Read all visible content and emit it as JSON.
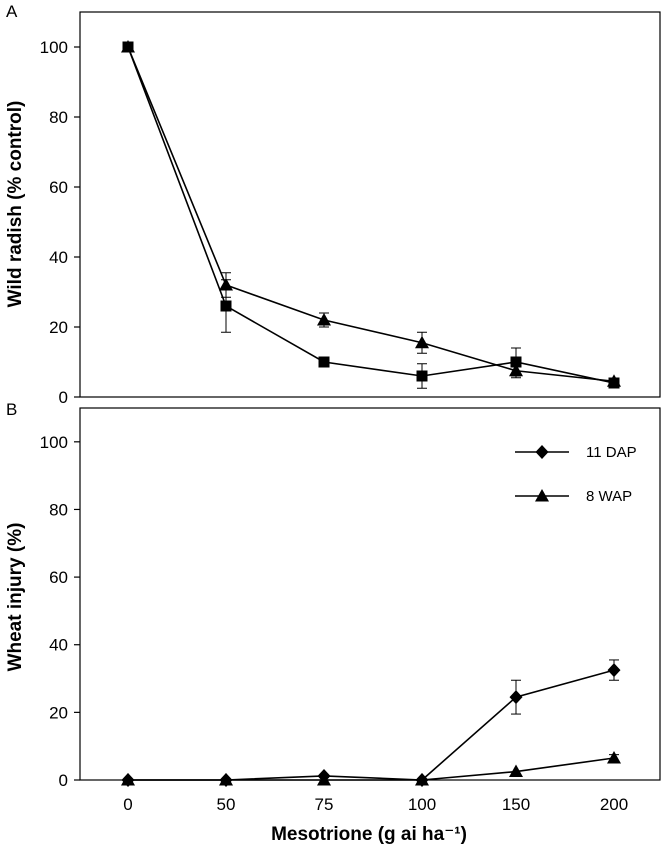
{
  "figure": {
    "xlabel": "Mesotrione (g ai ha⁻¹)"
  },
  "chart_data": [
    {
      "panel": "A",
      "type": "line",
      "title": "",
      "xlabel": "",
      "ylabel": "Wild radish (% control)",
      "categories": [
        "0",
        "50",
        "75",
        "100",
        "150",
        "200"
      ],
      "ylim": [
        0,
        110
      ],
      "yticks": [
        0,
        20,
        40,
        60,
        80,
        100
      ],
      "legend": "none",
      "series": [
        {
          "name": "11 DAP",
          "marker": "square",
          "values": [
            100,
            26,
            10,
            6,
            10,
            4
          ],
          "errors": [
            0,
            7.5,
            0,
            3.5,
            4,
            0
          ]
        },
        {
          "name": "8 WAP",
          "marker": "triangle",
          "values": [
            100,
            32,
            22,
            15.5,
            7.5,
            4.5
          ],
          "errors": [
            0,
            3.5,
            2,
            3,
            2,
            0
          ]
        }
      ]
    },
    {
      "panel": "B",
      "type": "line",
      "title": "",
      "xlabel": "Mesotrione (g ai ha⁻¹)",
      "ylabel": "Wheat injury (%)",
      "categories": [
        "0",
        "50",
        "75",
        "100",
        "150",
        "200"
      ],
      "ylim": [
        0,
        110
      ],
      "yticks": [
        0,
        20,
        40,
        60,
        80,
        100
      ],
      "legend": "top-right",
      "series": [
        {
          "name": "11 DAP",
          "marker": "diamond",
          "values": [
            0,
            0,
            1.2,
            0,
            24.5,
            32.5
          ],
          "errors": [
            0,
            0,
            0,
            0,
            5,
            3
          ]
        },
        {
          "name": "8 WAP",
          "marker": "triangle",
          "values": [
            0,
            0,
            0,
            0,
            2.5,
            6.5
          ],
          "errors": [
            0,
            0,
            0,
            0,
            0,
            1
          ]
        }
      ]
    }
  ]
}
